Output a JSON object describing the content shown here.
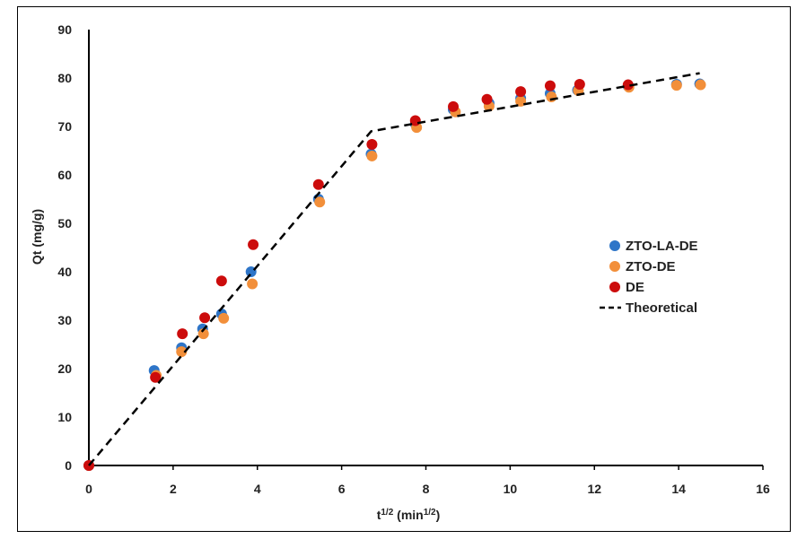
{
  "chart_data": {
    "type": "scatter",
    "title": "",
    "xlabel": {
      "base": "t",
      "sup": "1/2",
      "unit_open": " (min",
      "unit_sup": "1/2",
      "unit_close": ")"
    },
    "ylabel": "Qt (mg/g)",
    "xlim": [
      0,
      16
    ],
    "ylim": [
      0,
      90
    ],
    "xticks": [
      0,
      2,
      4,
      6,
      8,
      10,
      12,
      14,
      16
    ],
    "yticks": [
      0,
      10,
      20,
      30,
      40,
      50,
      60,
      70,
      80,
      90
    ],
    "grid": false,
    "legend_position": "right",
    "series": [
      {
        "name": "ZTO-LA-DE",
        "color": "#2e75c8",
        "marker": "circle",
        "points": [
          [
            0,
            0
          ],
          [
            1.55,
            19.6
          ],
          [
            2.2,
            24.3
          ],
          [
            2.7,
            28.2
          ],
          [
            3.15,
            31.3
          ],
          [
            3.85,
            40.0
          ],
          [
            5.45,
            55.0
          ],
          [
            6.7,
            64.3
          ],
          [
            7.75,
            70.5
          ],
          [
            8.65,
            73.5
          ],
          [
            9.5,
            74.8
          ],
          [
            10.25,
            75.8
          ],
          [
            10.95,
            76.8
          ],
          [
            11.6,
            77.5
          ],
          [
            12.8,
            78.3
          ],
          [
            13.95,
            78.7
          ],
          [
            14.5,
            78.8
          ]
        ]
      },
      {
        "name": "ZTO-DE",
        "color": "#f28f3a",
        "marker": "circle",
        "points": [
          [
            0,
            0
          ],
          [
            1.6,
            18.6
          ],
          [
            2.2,
            23.5
          ],
          [
            2.72,
            27.2
          ],
          [
            3.2,
            30.4
          ],
          [
            3.88,
            37.5
          ],
          [
            5.48,
            54.4
          ],
          [
            6.72,
            63.9
          ],
          [
            7.78,
            69.8
          ],
          [
            8.7,
            73.0
          ],
          [
            9.5,
            74.2
          ],
          [
            10.25,
            75.2
          ],
          [
            10.98,
            76.1
          ],
          [
            11.62,
            77.4
          ],
          [
            12.82,
            78.1
          ],
          [
            13.95,
            78.5
          ],
          [
            14.52,
            78.6
          ]
        ]
      },
      {
        "name": "DE",
        "color": "#cc0c0c",
        "marker": "circle",
        "points": [
          [
            0,
            0
          ],
          [
            1.58,
            18.2
          ],
          [
            2.22,
            27.2
          ],
          [
            2.75,
            30.5
          ],
          [
            3.15,
            38.1
          ],
          [
            3.9,
            45.6
          ],
          [
            5.45,
            58.0
          ],
          [
            6.72,
            66.3
          ],
          [
            7.75,
            71.2
          ],
          [
            8.65,
            74.1
          ],
          [
            9.45,
            75.6
          ],
          [
            10.25,
            77.2
          ],
          [
            10.95,
            78.4
          ],
          [
            11.65,
            78.7
          ],
          [
            12.8,
            78.6
          ]
        ]
      },
      {
        "name": "Theoretical",
        "color": "#000000",
        "marker": "none",
        "line_style": "dashed",
        "points": [
          [
            0,
            0
          ],
          [
            6.7,
            69.0
          ],
          [
            14.5,
            81.0
          ]
        ]
      }
    ]
  }
}
